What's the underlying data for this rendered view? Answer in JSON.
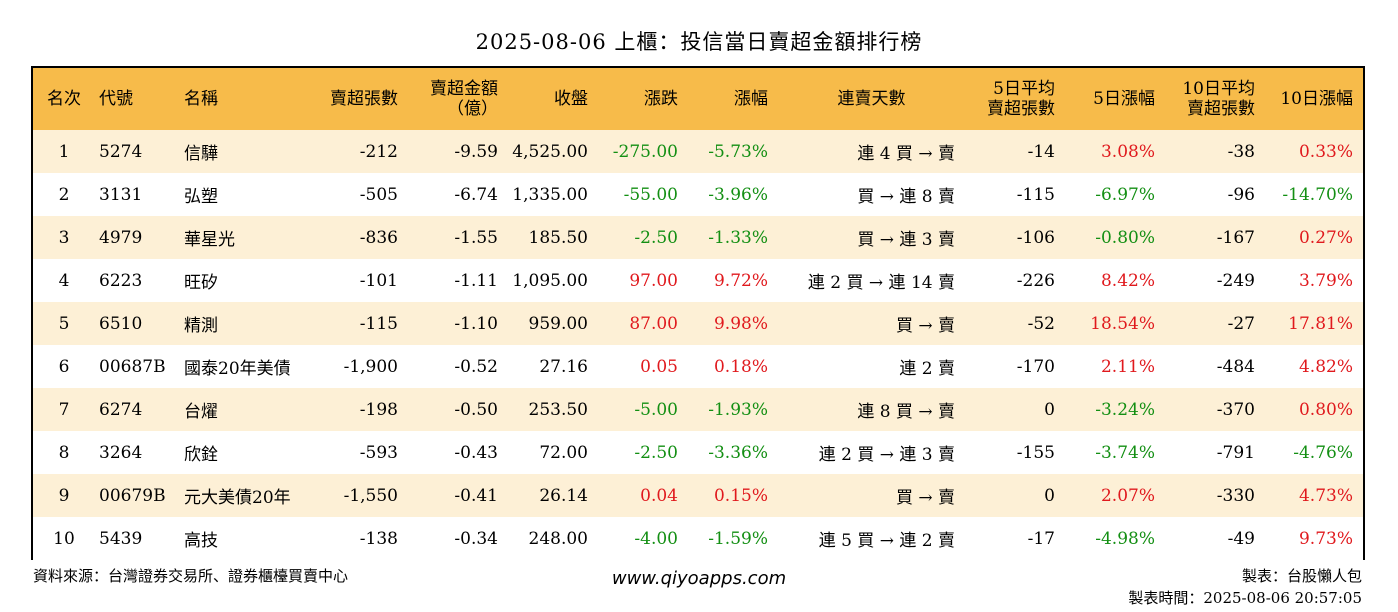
{
  "title": "2025-08-06 上櫃：投信當日賣超金額排行榜",
  "headers": {
    "rank": "名次",
    "code": "代號",
    "name": "名稱",
    "sell_lots": "賣超張數",
    "sell_amount_l1": "賣超金額",
    "sell_amount_l2": "（億）",
    "close": "收盤",
    "change": "漲跌",
    "change_pct": "漲幅",
    "streak": "連賣天數",
    "avg5_l1": "5日平均",
    "avg5_l2": "賣超張數",
    "pct5": "5日漲幅",
    "avg10_l1": "10日平均",
    "avg10_l2": "賣超張數",
    "pct10": "10日漲幅"
  },
  "rows": [
    {
      "rank": "1",
      "code": "5274",
      "name": "信驊",
      "sell_lots": "-212",
      "sell_amount": "-9.59",
      "close": "4,525.00",
      "change": "-275.00",
      "change_pct": "-5.73%",
      "streak": "連 4 買 → 賣",
      "avg5": "-14",
      "pct5": "3.08%",
      "avg10": "-38",
      "pct10": "0.33%"
    },
    {
      "rank": "2",
      "code": "3131",
      "name": "弘塑",
      "sell_lots": "-505",
      "sell_amount": "-6.74",
      "close": "1,335.00",
      "change": "-55.00",
      "change_pct": "-3.96%",
      "streak": "買 → 連 8 賣",
      "avg5": "-115",
      "pct5": "-6.97%",
      "avg10": "-96",
      "pct10": "-14.70%"
    },
    {
      "rank": "3",
      "code": "4979",
      "name": "華星光",
      "sell_lots": "-836",
      "sell_amount": "-1.55",
      "close": "185.50",
      "change": "-2.50",
      "change_pct": "-1.33%",
      "streak": "買 → 連 3 賣",
      "avg5": "-106",
      "pct5": "-0.80%",
      "avg10": "-167",
      "pct10": "0.27%"
    },
    {
      "rank": "4",
      "code": "6223",
      "name": "旺矽",
      "sell_lots": "-101",
      "sell_amount": "-1.11",
      "close": "1,095.00",
      "change": "97.00",
      "change_pct": "9.72%",
      "streak": "連 2 買 → 連 14 賣",
      "avg5": "-226",
      "pct5": "8.42%",
      "avg10": "-249",
      "pct10": "3.79%"
    },
    {
      "rank": "5",
      "code": "6510",
      "name": "精測",
      "sell_lots": "-115",
      "sell_amount": "-1.10",
      "close": "959.00",
      "change": "87.00",
      "change_pct": "9.98%",
      "streak": "買 → 賣",
      "avg5": "-52",
      "pct5": "18.54%",
      "avg10": "-27",
      "pct10": "17.81%"
    },
    {
      "rank": "6",
      "code": "00687B",
      "name": "國泰20年美債",
      "sell_lots": "-1,900",
      "sell_amount": "-0.52",
      "close": "27.16",
      "change": "0.05",
      "change_pct": "0.18%",
      "streak": "連 2 賣",
      "avg5": "-170",
      "pct5": "2.11%",
      "avg10": "-484",
      "pct10": "4.82%"
    },
    {
      "rank": "7",
      "code": "6274",
      "name": "台燿",
      "sell_lots": "-198",
      "sell_amount": "-0.50",
      "close": "253.50",
      "change": "-5.00",
      "change_pct": "-1.93%",
      "streak": "連 8 買 → 賣",
      "avg5": "0",
      "pct5": "-3.24%",
      "avg10": "-370",
      "pct10": "0.80%"
    },
    {
      "rank": "8",
      "code": "3264",
      "name": "欣銓",
      "sell_lots": "-593",
      "sell_amount": "-0.43",
      "close": "72.00",
      "change": "-2.50",
      "change_pct": "-3.36%",
      "streak": "連 2 買 → 連 3 賣",
      "avg5": "-155",
      "pct5": "-3.74%",
      "avg10": "-791",
      "pct10": "-4.76%"
    },
    {
      "rank": "9",
      "code": "00679B",
      "name": "元大美債20年",
      "sell_lots": "-1,550",
      "sell_amount": "-0.41",
      "close": "26.14",
      "change": "0.04",
      "change_pct": "0.15%",
      "streak": "買 → 賣",
      "avg5": "0",
      "pct5": "2.07%",
      "avg10": "-330",
      "pct10": "4.73%"
    },
    {
      "rank": "10",
      "code": "5439",
      "name": "高技",
      "sell_lots": "-138",
      "sell_amount": "-0.34",
      "close": "248.00",
      "change": "-4.00",
      "change_pct": "-1.59%",
      "streak": "連 5 買 → 連 2 賣",
      "avg5": "-17",
      "pct5": "-4.98%",
      "avg10": "-49",
      "pct10": "9.73%"
    }
  ],
  "footer": {
    "source": "資料來源：台灣證券交易所、證券櫃檯買賣中心",
    "website": "www.qiyoapps.com",
    "maker": "製表：台股懶人包",
    "made_time": "製表時間：2025-08-06 20:57:05"
  },
  "colors": {
    "header_bg": "#f7bb4a",
    "stripe_bg": "#fdf0d6",
    "positive": "#e0191d",
    "negative": "#138f13"
  }
}
